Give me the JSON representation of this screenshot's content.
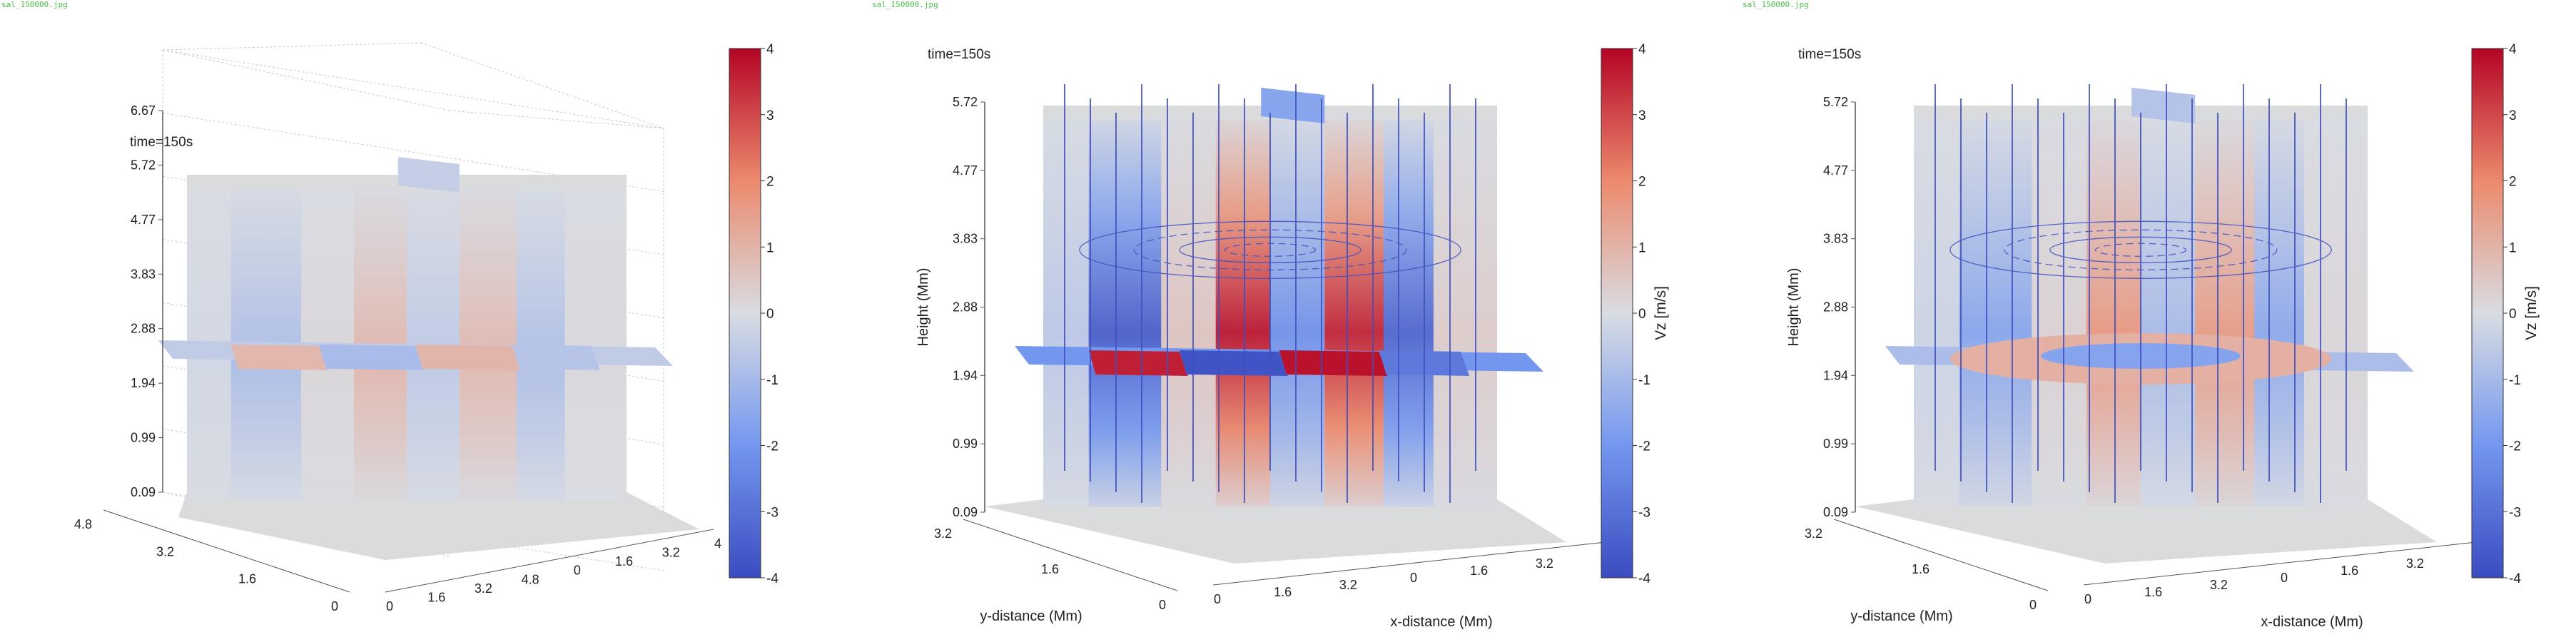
{
  "file_labels": [
    "sal_150000.jpg",
    "sal_150000.jpg",
    "sal_150000.jpg"
  ],
  "colors": {
    "colormap": [
      "#3b4cc0",
      "#7397ef",
      "#d9dce3",
      "#ec8a6d",
      "#b40426"
    ],
    "neutral_surface": "#dadbdc",
    "field_line": "#3f4fc0",
    "axis": "#555555"
  },
  "chart_data": [
    {
      "type": "heatmap",
      "view": "3d-slices",
      "time_label": "time=150s",
      "zlabel": "",
      "xlabel": "",
      "ylabel": "",
      "z_ticks": [
        "0.09",
        "0.99",
        "1.94",
        "2.88",
        "3.83",
        "4.77",
        "5.72",
        "6.67"
      ],
      "x_ticks": [
        "0",
        "1.6",
        "3.2",
        "4.8",
        "0",
        "1.6",
        "3.2",
        "4"
      ],
      "y_ticks": [
        "0",
        "1.6",
        "3.2",
        "4.8"
      ],
      "colorbar": {
        "label": "",
        "ticks": [
          "4",
          "3",
          "2",
          "1",
          "0",
          "-1",
          "-2",
          "-3",
          "-4"
        ],
        "range": [
          -4,
          4
        ]
      },
      "field_lines": false,
      "amplitude": 0.25,
      "grid": true
    },
    {
      "type": "heatmap",
      "view": "3d-slices",
      "time_label": "time=150s",
      "zlabel": "Height (Mm)",
      "xlabel": "x-distance (Mm)",
      "ylabel": "y-distance (Mm)",
      "z_ticks": [
        "0.09",
        "0.99",
        "1.94",
        "2.88",
        "3.83",
        "4.77",
        "5.72"
      ],
      "x_ticks": [
        "0",
        "1.6",
        "3.2",
        "0",
        "1.6",
        "3.2",
        "0"
      ],
      "y_ticks": [
        "0",
        "1.6",
        "3.2"
      ],
      "colorbar": {
        "label": "Vz [m/s]",
        "ticks": [
          "4",
          "3",
          "2",
          "1",
          "0",
          "-1",
          "-2",
          "-3",
          "-4"
        ],
        "range": [
          -4,
          4
        ]
      },
      "field_lines": true,
      "amplitude": 1.0,
      "grid": false
    },
    {
      "type": "heatmap",
      "view": "3d-slices",
      "time_label": "time=150s",
      "zlabel": "Height (Mm)",
      "xlabel": "x-distance (Mm)",
      "ylabel": "y-distance (Mm)",
      "z_ticks": [
        "0.09",
        "0.99",
        "1.94",
        "2.88",
        "3.83",
        "4.77",
        "5.72"
      ],
      "x_ticks": [
        "0",
        "1.6",
        "3.2",
        "0",
        "1.6",
        "3.2",
        "0"
      ],
      "y_ticks": [
        "0",
        "1.6",
        "3.2"
      ],
      "colorbar": {
        "label": "Vz [m/s]",
        "ticks": [
          "4",
          "3",
          "2",
          "1",
          "0",
          "-1",
          "-2",
          "-3",
          "-4"
        ],
        "range": [
          -4,
          4
        ]
      },
      "field_lines": true,
      "amplitude": 0.45,
      "grid": false
    }
  ]
}
